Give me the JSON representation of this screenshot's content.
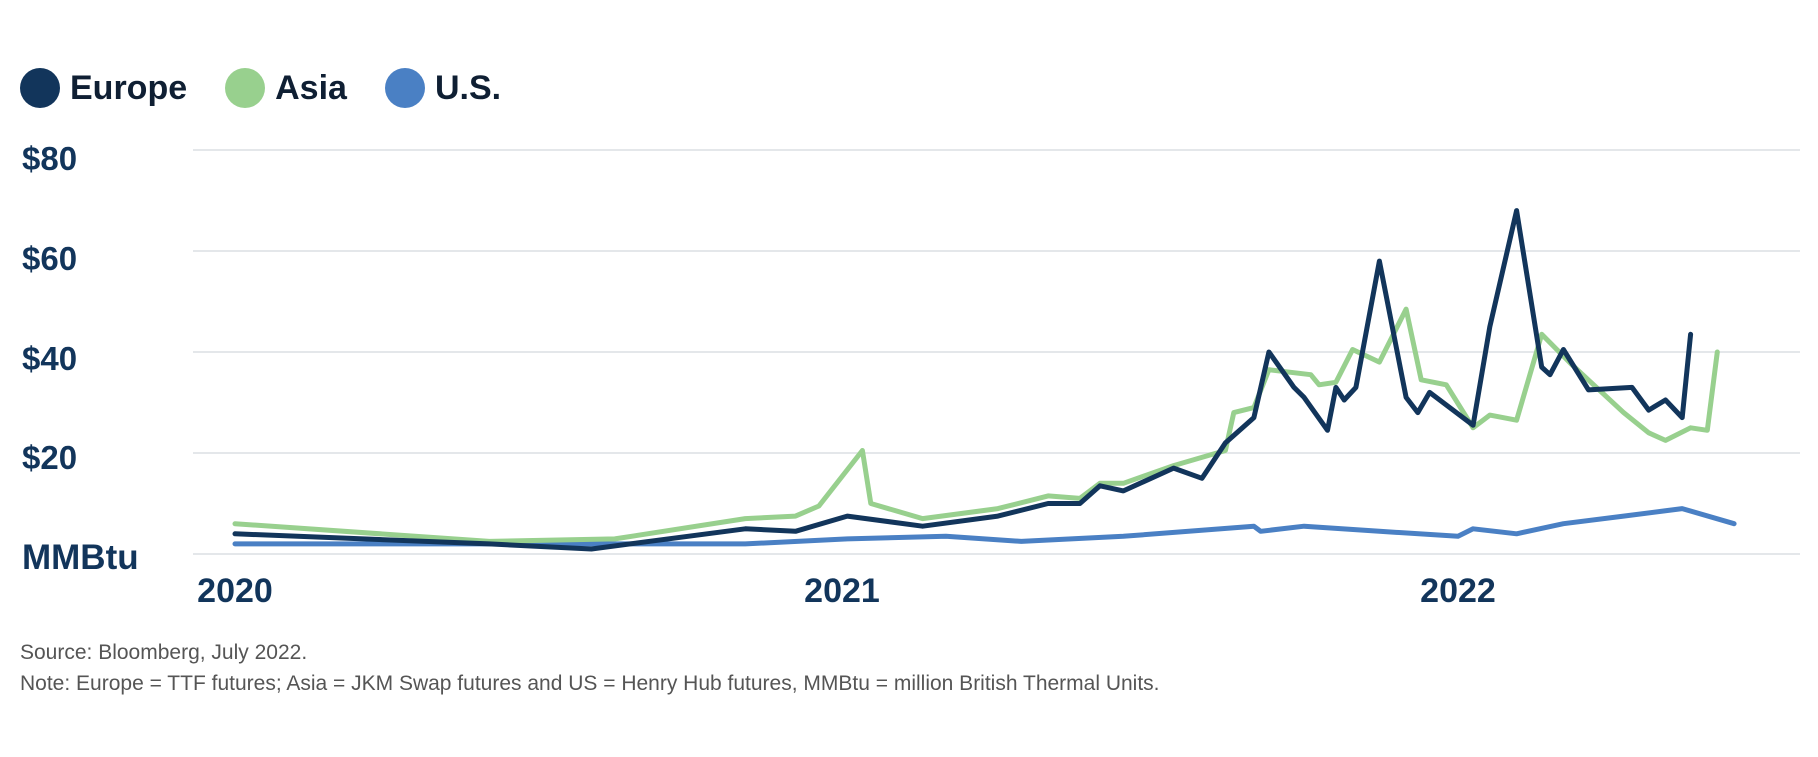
{
  "legend": [
    {
      "label": "Europe",
      "color": "#12355b"
    },
    {
      "label": "Asia",
      "color": "#98d08e"
    },
    {
      "label": "U.S.",
      "color": "#4a80c4"
    }
  ],
  "chart_data": {
    "type": "line",
    "ylabel": "MMBtu",
    "ylim": [
      0,
      80
    ],
    "yticks": [
      "$80",
      "$60",
      "$40",
      "$20"
    ],
    "xticks": [
      "2020",
      "2021",
      "2022"
    ],
    "grid": true,
    "legend_position": "top-left",
    "series": [
      {
        "name": "Europe",
        "color": "#12355b",
        "x": [
          "2020-01-01",
          "2020-06-01",
          "2020-08-01",
          "2020-11-01",
          "2020-12-01",
          "2021-01-01",
          "2021-02-15",
          "2021-04-01",
          "2021-05-01",
          "2021-05-20",
          "2021-06-01",
          "2021-06-15",
          "2021-07-15",
          "2021-08-01",
          "2021-08-15",
          "2021-09-01",
          "2021-09-10",
          "2021-09-25",
          "2021-10-01",
          "2021-10-15",
          "2021-10-20",
          "2021-10-25",
          "2021-11-01",
          "2021-11-15",
          "2021-12-01",
          "2021-12-08",
          "2021-12-15",
          "2022-01-10",
          "2022-01-20",
          "2022-02-05",
          "2022-02-20",
          "2022-02-25",
          "2022-03-05",
          "2022-03-20",
          "2022-04-15",
          "2022-04-25",
          "2022-05-05",
          "2022-05-15",
          "2022-05-20"
        ],
        "values": [
          4,
          2,
          1,
          5,
          4.5,
          7.5,
          5.5,
          7.5,
          10,
          10,
          13.5,
          12.5,
          17,
          15,
          22,
          27,
          40,
          33,
          31,
          24.5,
          33,
          30.5,
          33,
          58,
          31,
          28,
          32,
          25.5,
          45,
          68,
          37,
          35.5,
          40.5,
          32.5,
          33,
          28.5,
          30.5,
          27,
          43.5
        ]
      },
      {
        "name": "Asia",
        "color": "#98d08e",
        "x": [
          "2020-01-01",
          "2020-06-01",
          "2020-08-15",
          "2020-11-01",
          "2020-12-01",
          "2020-12-15",
          "2021-01-10",
          "2021-01-15",
          "2021-02-15",
          "2021-04-01",
          "2021-05-01",
          "2021-05-20",
          "2021-06-01",
          "2021-06-15",
          "2021-07-15",
          "2021-08-15",
          "2021-08-20",
          "2021-09-01",
          "2021-09-10",
          "2021-10-05",
          "2021-10-10",
          "2021-10-20",
          "2021-10-30",
          "2021-11-15",
          "2021-12-01",
          "2021-12-10",
          "2021-12-25",
          "2022-01-10",
          "2022-01-20",
          "2022-02-05",
          "2022-02-20",
          "2022-03-10",
          "2022-04-10",
          "2022-04-25",
          "2022-05-05",
          "2022-05-20",
          "2022-05-30",
          "2022-06-05"
        ],
        "values": [
          6,
          2.5,
          3,
          7,
          7.5,
          9.5,
          20.5,
          10,
          7,
          9,
          11.5,
          11,
          14,
          14,
          17.5,
          20.5,
          28,
          29,
          36.5,
          35.5,
          33.5,
          34,
          40.5,
          38,
          48.5,
          34.5,
          33.5,
          25,
          27.5,
          26.5,
          43.5,
          37.5,
          28,
          24,
          22.5,
          25,
          24.5,
          40
        ]
      },
      {
        "name": "U.S.",
        "color": "#4a80c4",
        "x": [
          "2020-01-01",
          "2020-11-01",
          "2021-01-01",
          "2021-03-01",
          "2021-04-15",
          "2021-06-15",
          "2021-09-01",
          "2021-09-05",
          "2021-10-01",
          "2021-11-15",
          "2022-01-01",
          "2022-01-10",
          "2022-02-05",
          "2022-03-05",
          "2022-04-10",
          "2022-05-15",
          "2022-06-15"
        ],
        "values": [
          2,
          2,
          3,
          3.5,
          2.5,
          3.5,
          5.5,
          4.5,
          5.5,
          4.5,
          3.5,
          5,
          4,
          6,
          7.5,
          9,
          6
        ]
      }
    ]
  },
  "footer": {
    "source": "Source: Bloomberg, July 2022.",
    "note": "Note: Europe = TTF futures; Asia = JKM Swap futures and US = Henry Hub futures, MMBtu = million British Thermal Units."
  }
}
